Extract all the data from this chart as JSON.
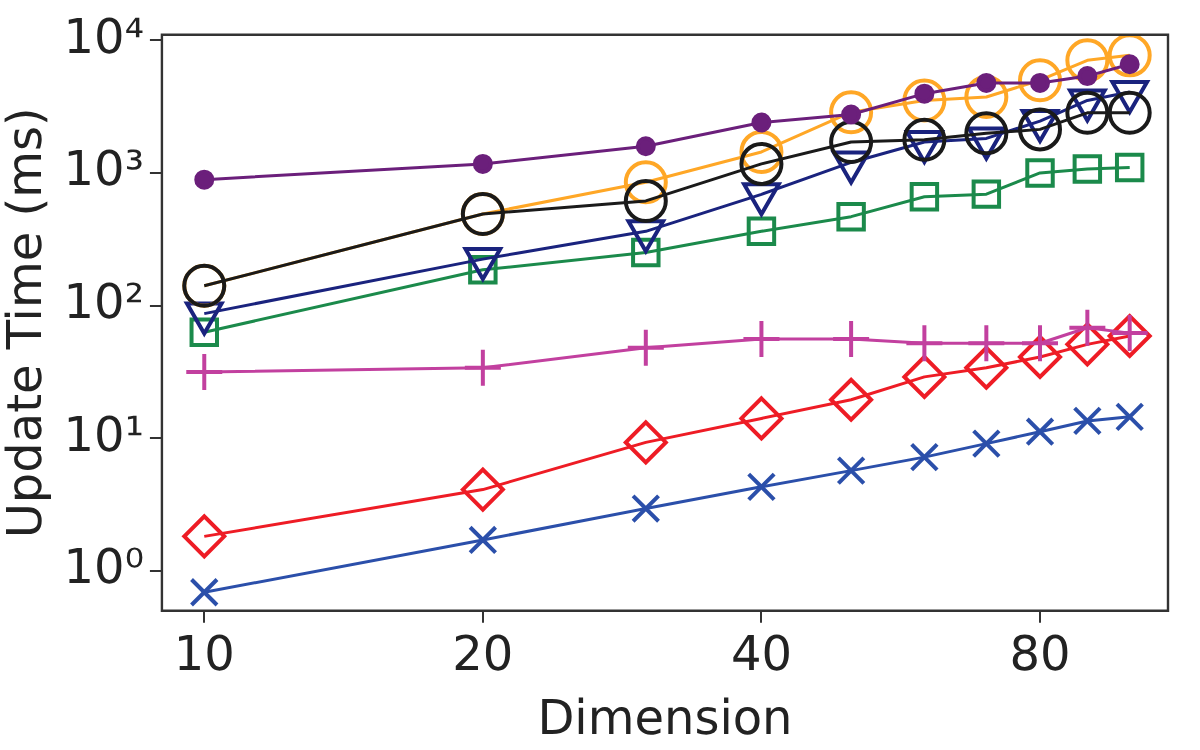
{
  "chart_data": {
    "type": "line",
    "xlabel": "Dimension",
    "ylabel": "Update Time (ms)",
    "log": "xy",
    "grid": false,
    "legend": false,
    "x": [
      10,
      20,
      30,
      40,
      50,
      60,
      70,
      80,
      90,
      100
    ],
    "xlim": [
      9,
      110
    ],
    "xticks": [
      10,
      20,
      40,
      80
    ],
    "ylim": [
      0.5,
      11000
    ],
    "yticks": [
      {
        "value": 1,
        "label": "10⁰"
      },
      {
        "value": 10,
        "label": "10¹"
      },
      {
        "value": 100,
        "label": "10²"
      },
      {
        "value": 1000,
        "label": "10³"
      },
      {
        "value": 10000,
        "label": "10⁴"
      }
    ],
    "series": [
      {
        "color": "#6b1f7b",
        "marker": "dot",
        "values": [
          890,
          1170,
          1590,
          2400,
          2760,
          3960,
          4770,
          4770,
          5370,
          6600
        ]
      },
      {
        "color": "#1a1a1a",
        "marker": "circle",
        "values": [
          141,
          490,
          615,
          1170,
          1710,
          1780,
          1990,
          2130,
          2840,
          2840
        ]
      },
      {
        "color": "#ffa726",
        "marker": "circle",
        "values": [
          141,
          490,
          850,
          1440,
          2870,
          3520,
          3740,
          5000,
          7060,
          7700
        ]
      },
      {
        "color": "#1a237e",
        "marker": "triangle_down",
        "values": [
          87,
          224,
          363,
          690,
          1200,
          1710,
          1820,
          2460,
          3520,
          4070
        ]
      },
      {
        "color": "#1b8a4b",
        "marker": "square",
        "values": [
          63,
          186,
          251,
          363,
          468,
          661,
          692,
          1000,
          1070,
          1100
        ]
      },
      {
        "color": "#c2409f",
        "marker": "plus",
        "values": [
          31.6,
          34,
          48,
          56,
          56,
          52,
          52,
          52,
          68,
          62
        ]
      },
      {
        "color": "#ee1c25",
        "marker": "diamond",
        "values": [
          1.82,
          4.1,
          9.3,
          14.1,
          19.5,
          29,
          34,
          41,
          51,
          59
        ]
      },
      {
        "color": "#2b4faa",
        "marker": "x",
        "values": [
          0.69,
          1.71,
          2.95,
          4.3,
          5.7,
          7.2,
          9.1,
          11.2,
          13.5,
          14.5
        ]
      }
    ]
  }
}
